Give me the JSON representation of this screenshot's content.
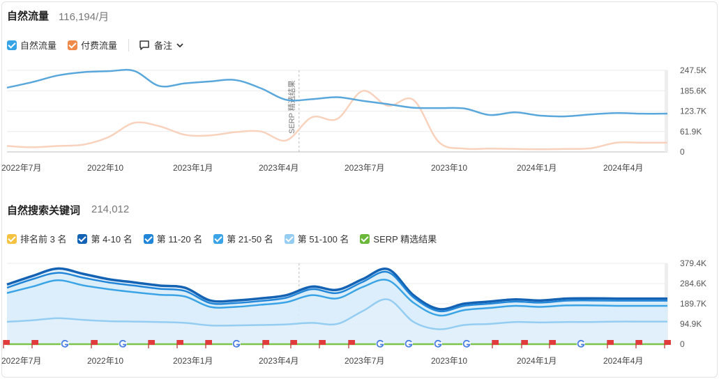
{
  "organic": {
    "title": "自然流量",
    "value": "116,194/月",
    "legend": {
      "organic_label": "自然流量",
      "paid_label": "付费流量",
      "notes_label": "备注"
    },
    "annotation": "SERP 精选结果"
  },
  "keywords": {
    "title": "自然搜索关键词",
    "value": "214,012",
    "legend": [
      {
        "label": "排名前 3 名",
        "color": "#f5c242"
      },
      {
        "label": "第 4-10 名",
        "color": "#1462b4"
      },
      {
        "label": "第 11-20 名",
        "color": "#2286d8"
      },
      {
        "label": "第 21-50 名",
        "color": "#3aa4e6"
      },
      {
        "label": "第 51-100 名",
        "color": "#94cdf1"
      },
      {
        "label": "SERP 精选结果",
        "color": "#6bb83a"
      }
    ]
  },
  "colors": {
    "organic": "#5aa7dc",
    "paid": "#f9d2bd",
    "paid_checkbox": "#f08a4b",
    "organic_checkbox": "#36a3e6",
    "grid": "#ebebeb",
    "serp_line": "#7cc44a",
    "flag": "#e23b3b"
  },
  "chart_data": [
    {
      "type": "line",
      "title": "自然流量",
      "x_tick_labels": [
        "2022年7月",
        "2022年10",
        "2023年1月",
        "2023年4月",
        "2023年7月",
        "2023年10",
        "2024年1月",
        "2024年4月"
      ],
      "y_tick_labels": [
        "247.5K",
        "185.6K",
        "123.7K",
        "61.9K",
        "0"
      ],
      "ylim": [
        0,
        247500
      ],
      "annotation": {
        "label": "SERP 精选结果",
        "x_index": 11.5
      },
      "series": [
        {
          "name": "自然流量",
          "color": "#5aa7dc",
          "values": [
            195000,
            212000,
            232000,
            242000,
            245000,
            246000,
            200000,
            208000,
            214000,
            218000,
            193000,
            158000,
            160000,
            166000,
            155000,
            145000,
            134000,
            133000,
            132000,
            112000,
            120000,
            110000,
            108000,
            114000,
            118000,
            116000,
            116194
          ]
        },
        {
          "name": "付费流量",
          "color": "#f9d2bd",
          "values": [
            18000,
            14000,
            18000,
            22000,
            45000,
            88000,
            78000,
            52000,
            50000,
            60000,
            62000,
            35000,
            105000,
            100000,
            185000,
            140000,
            158000,
            30000,
            10000,
            10000,
            9000,
            8000,
            9000,
            11000,
            28000,
            28000,
            28000
          ]
        }
      ]
    },
    {
      "type": "area",
      "title": "自然搜索关键词",
      "x_tick_labels": [
        "2022年7月",
        "2022年10",
        "2023年1月",
        "2023年4月",
        "2023年7月",
        "2023年10",
        "2024年1月",
        "2024年4月"
      ],
      "y_tick_labels": [
        "379.4K",
        "284.6K",
        "189.7K",
        "94.9K",
        "0"
      ],
      "ylim": [
        0,
        379400
      ],
      "series": [
        {
          "name": "第 4-10 名",
          "color": "#1462b4",
          "values": [
            280000,
            320000,
            355000,
            330000,
            305000,
            290000,
            275000,
            265000,
            205000,
            205000,
            215000,
            230000,
            270000,
            255000,
            305000,
            352000,
            230000,
            165000,
            190000,
            200000,
            210000,
            205000,
            214000,
            215000,
            214012,
            214012,
            214012
          ]
        },
        {
          "name": "第 11-20 名",
          "color": "#2286d8",
          "values": [
            265000,
            305000,
            335000,
            312000,
            290000,
            275000,
            260000,
            250000,
            193000,
            193000,
            203000,
            218000,
            258000,
            240000,
            292000,
            338000,
            220000,
            155000,
            180000,
            190000,
            200000,
            195000,
            204000,
            205000,
            204000,
            204000,
            204000
          ]
        },
        {
          "name": "第 21-50 名",
          "color": "#3aa4e6",
          "values": [
            240000,
            270000,
            300000,
            276000,
            258000,
            244000,
            232000,
            224000,
            175000,
            175000,
            185000,
            197000,
            230000,
            215000,
            268000,
            300000,
            195000,
            135000,
            160000,
            170000,
            180000,
            175000,
            182000,
            182000,
            180000,
            180000,
            180000
          ]
        },
        {
          "name": "第 51-100 名",
          "color": "#94cdf1",
          "values": [
            105000,
            112000,
            122000,
            114000,
            108000,
            106000,
            104000,
            100000,
            88000,
            88000,
            90000,
            93000,
            100000,
            95000,
            155000,
            210000,
            105000,
            70000,
            90000,
            95000,
            104000,
            102000,
            104000,
            104000,
            106000,
            106000,
            106000
          ]
        }
      ]
    }
  ]
}
